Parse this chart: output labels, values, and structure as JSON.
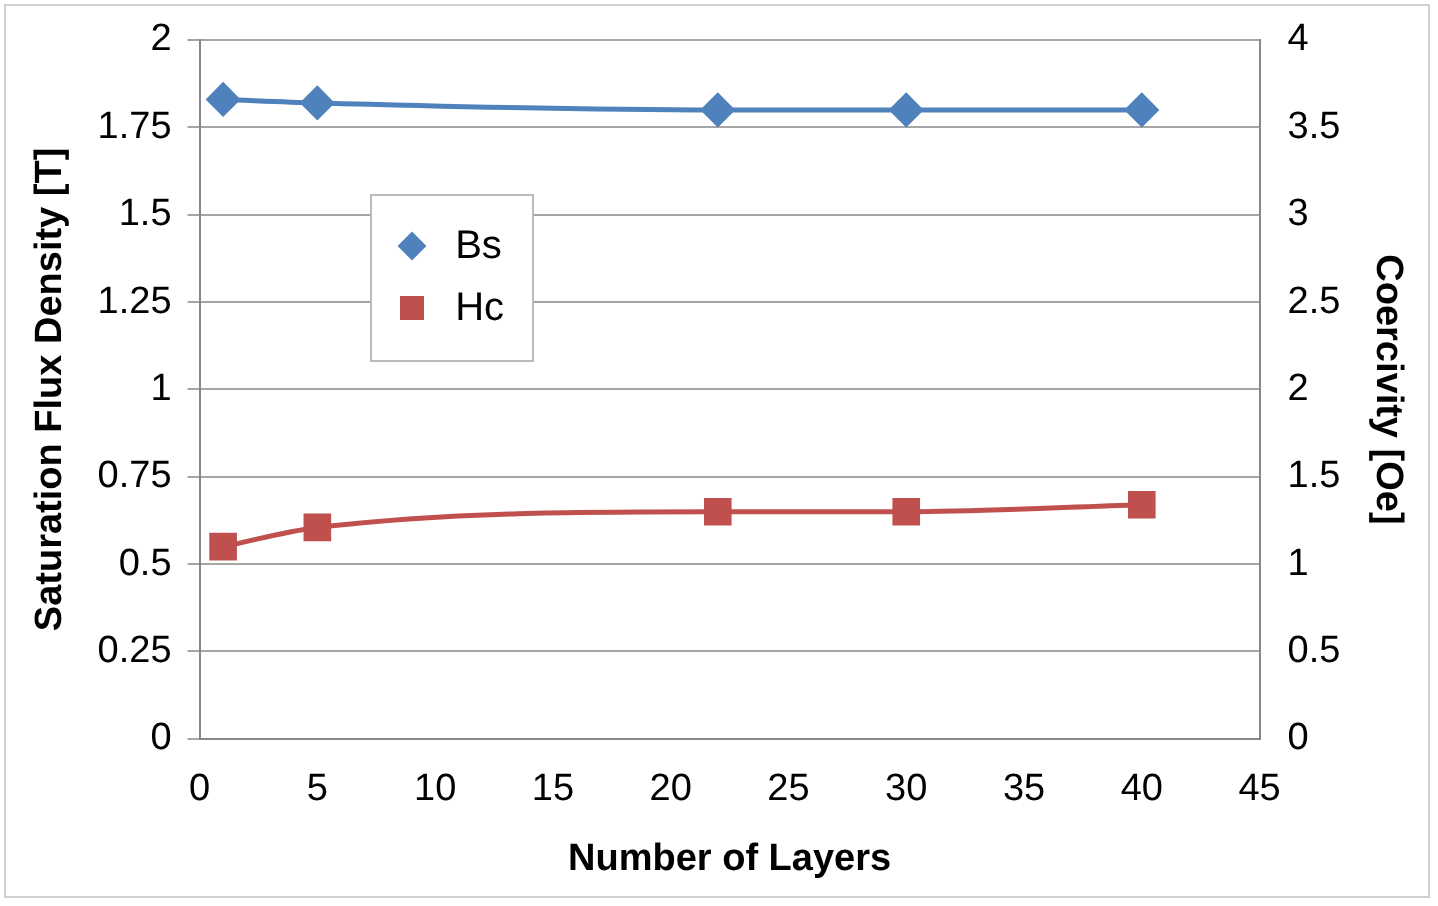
{
  "chart_data": {
    "type": "line",
    "xlabel": "Number of Layers",
    "ylabel": "Saturation Flux Density [T]",
    "y2label": "Coercivity [Oe]",
    "x": [
      1,
      5,
      22,
      30,
      40
    ],
    "series": [
      {
        "name": "Bs",
        "color": "#4f81bd",
        "values": [
          1.83,
          1.82,
          1.8,
          1.8,
          1.8
        ],
        "marker": "diamond"
      },
      {
        "name": "Hc",
        "color": "#c0504d",
        "values": [
          1.1,
          1.21,
          1.3,
          1.3,
          1.34
        ],
        "marker": "square",
        "axis": "y2"
      }
    ],
    "xlim": [
      0,
      45
    ],
    "xticks": [
      0,
      5,
      10,
      15,
      20,
      25,
      30,
      35,
      40,
      45
    ],
    "ylim": [
      0,
      2
    ],
    "yticks": [
      0,
      0.25,
      0.5,
      0.75,
      1,
      1.25,
      1.5,
      1.75,
      2
    ],
    "y2lim": [
      0,
      4
    ],
    "y2ticks": [
      0,
      0.5,
      1,
      1.5,
      2,
      2.5,
      3,
      3.5,
      4
    ],
    "grid": "y",
    "legend": "left"
  }
}
